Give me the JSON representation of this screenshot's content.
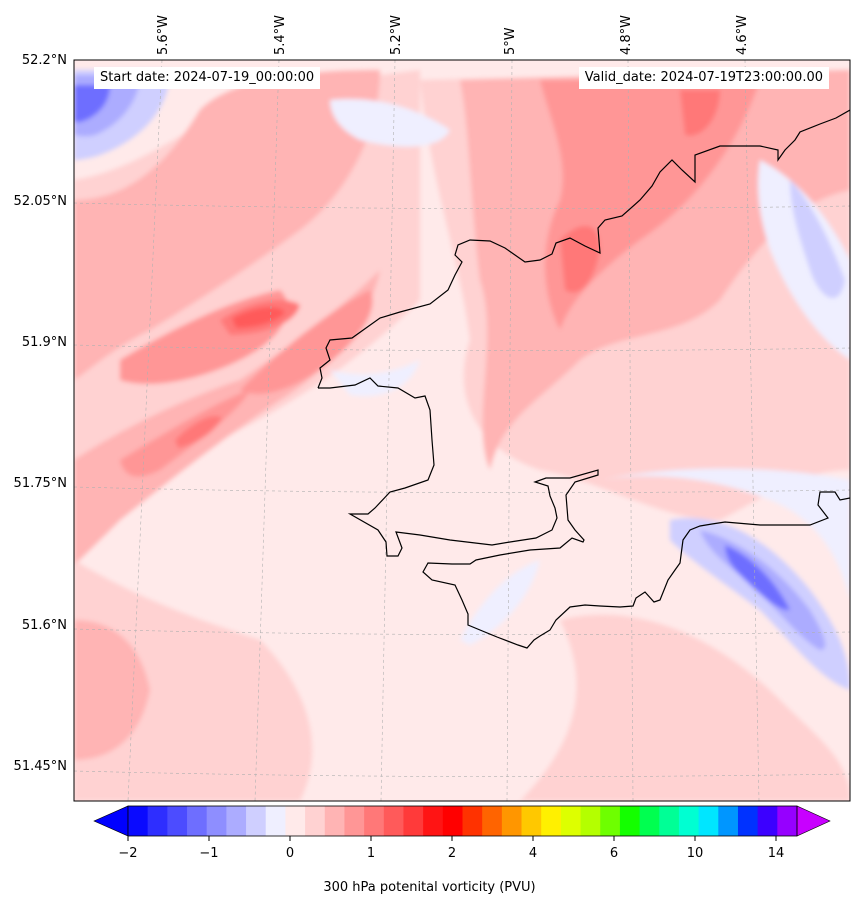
{
  "header": {
    "start_date": "Start date: 2024-07-19_00:00:00",
    "valid_date": "Valid_date: 2024-07-19T23:00:00.00"
  },
  "axes": {
    "lat_labels": [
      "52.2°N",
      "52.05°N",
      "51.9°N",
      "51.75°N",
      "51.6°N",
      "51.45°N"
    ],
    "lon_labels": [
      "5.6°W",
      "5.4°W",
      "5.2°W",
      "5°W",
      "4.8°W",
      "4.6°W"
    ]
  },
  "colorbar": {
    "label": "300 hPa potenital vorticity (PVU)",
    "tick_labels": [
      "−2",
      "−1",
      "0",
      "1",
      "2",
      "4",
      "6",
      "10",
      "14"
    ],
    "colors": [
      "#0a0aff",
      "#2e2eff",
      "#4c4cff",
      "#6e6eff",
      "#8e8eff",
      "#acacff",
      "#cfcfff",
      "#efefff",
      "#ffeaea",
      "#ffd2d2",
      "#ffb4b4",
      "#ff9696",
      "#ff7878",
      "#ff5a5a",
      "#ff3a3a",
      "#ff1414",
      "#ff0000",
      "#ff3200",
      "#ff6400",
      "#ff9600",
      "#ffc800",
      "#fff000",
      "#ddff00",
      "#b4ff00",
      "#6eff00",
      "#14ff00",
      "#00ff50",
      "#00ff96",
      "#00ffd2",
      "#00e6ff",
      "#0096ff",
      "#0032ff",
      "#3c00ff",
      "#9600ff"
    ],
    "under_color": "#0000ff",
    "over_color": "#c800ff"
  },
  "field_colors": {
    "pv_neg_strong": "#6e6eff",
    "pv_neg_mid": "#acacff",
    "pv_neg_weak": "#cfcfff",
    "pv_near_zero_neg": "#efefff",
    "pv_near_zero_pos": "#ffeaea",
    "pv_low": "#ffd2d2",
    "pv_mid_low": "#ffb4b4",
    "pv_mid": "#ff9696",
    "pv_high": "#ff7878",
    "pv_higher": "#ff5a5a",
    "coastline": "#000000",
    "gridline": "#b0b0b0"
  }
}
